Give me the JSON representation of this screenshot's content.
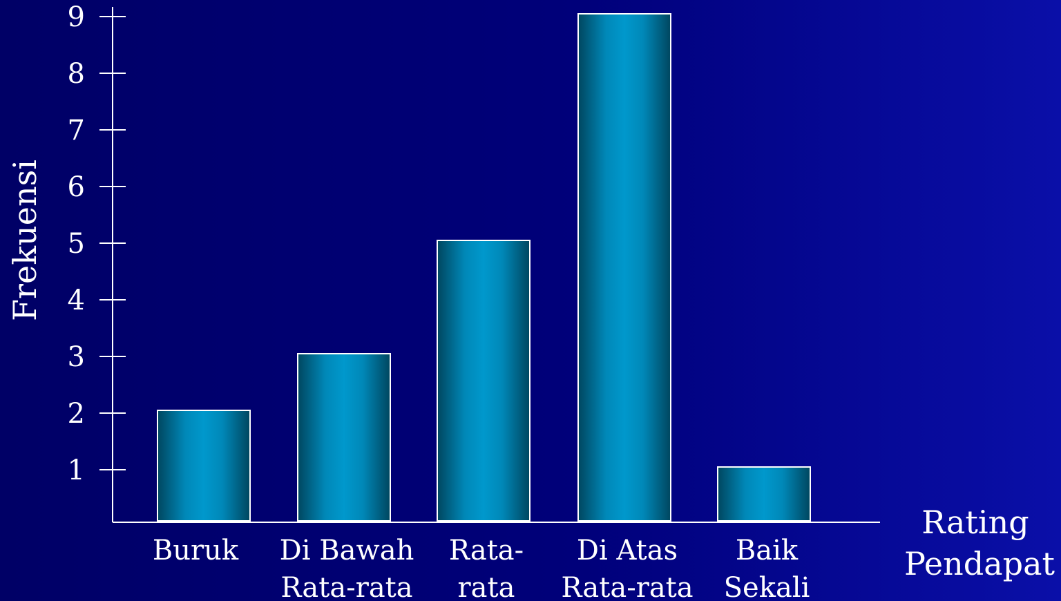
{
  "chart_data": {
    "type": "bar",
    "categories": [
      [
        "Buruk"
      ],
      [
        "Di Bawah",
        "Rata-rata"
      ],
      [
        "Rata-",
        "rata"
      ],
      [
        "Di Atas",
        "Rata-rata"
      ],
      [
        "Baik",
        "Sekali"
      ]
    ],
    "values": [
      2,
      3,
      5,
      9,
      1
    ],
    "ylabel": "Frekuensi",
    "xlabel": [
      "Rating",
      "Pendapat"
    ],
    "yticks": [
      1,
      2,
      3,
      4,
      5,
      6,
      7,
      8,
      9
    ],
    "ylim": [
      0,
      9
    ],
    "grid": false,
    "legend": "none",
    "colors": {
      "bar_center": "#0095c8",
      "bar_edge": "#004a66",
      "bar_border": "#ffffff",
      "axis": "#ffffff",
      "text": "#ffffff"
    }
  }
}
